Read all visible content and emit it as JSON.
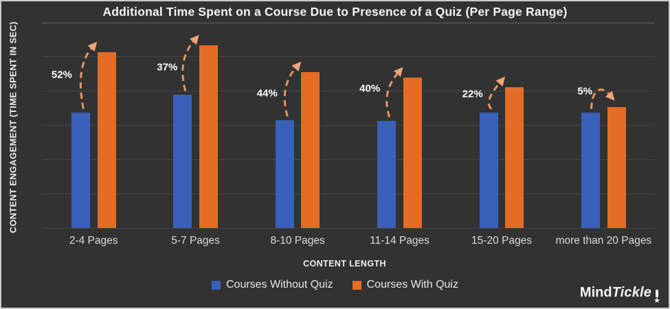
{
  "title": "Additional Time Spent on a Course Due to Presence of a Quiz (Per Page Range)",
  "chart_data": {
    "type": "bar",
    "title": "Additional Time Spent on a Course Due to Presence of a Quiz (Per Page Range)",
    "categories": [
      "2-4 Pages",
      "5-7 Pages",
      "8-10 Pages",
      "11-14 Pages",
      "15-20 Pages",
      "more than 20 Pages"
    ],
    "series": [
      {
        "name": "Courses Without Quiz",
        "color": "#3a61ba",
        "values": [
          169,
          195,
          158,
          157,
          169,
          169
        ]
      },
      {
        "name": "Courses With Quiz",
        "color": "#e56c25",
        "values": [
          257,
          267,
          228,
          220,
          206,
          177
        ]
      }
    ],
    "increase_labels": [
      "52%",
      "37%",
      "44%",
      "40%",
      "22%",
      "5%"
    ],
    "xlabel": "CONTENT LENGTH",
    "ylabel": "CONTENT ENGAGEMENT (TIME SPENT IN SEC)",
    "ylim": [
      0,
      300
    ],
    "gridlines": true,
    "y_tick_labels_shown": false,
    "legend_position": "bottom"
  },
  "legend": {
    "items": [
      {
        "label": "Courses Without Quiz",
        "color": "#3a61ba"
      },
      {
        "label": "Courses With Quiz",
        "color": "#e56c25"
      }
    ]
  },
  "branding": {
    "mind": "Mind",
    "tickle": "Tickle"
  },
  "colors": {
    "background": "#323232",
    "frame_border": "#cbcbcb",
    "bar_blue": "#3a61ba",
    "bar_orange": "#e56c25",
    "arrow": "#e8945f",
    "arrowhead": "#f0a478",
    "text": "#f0f0f0"
  }
}
